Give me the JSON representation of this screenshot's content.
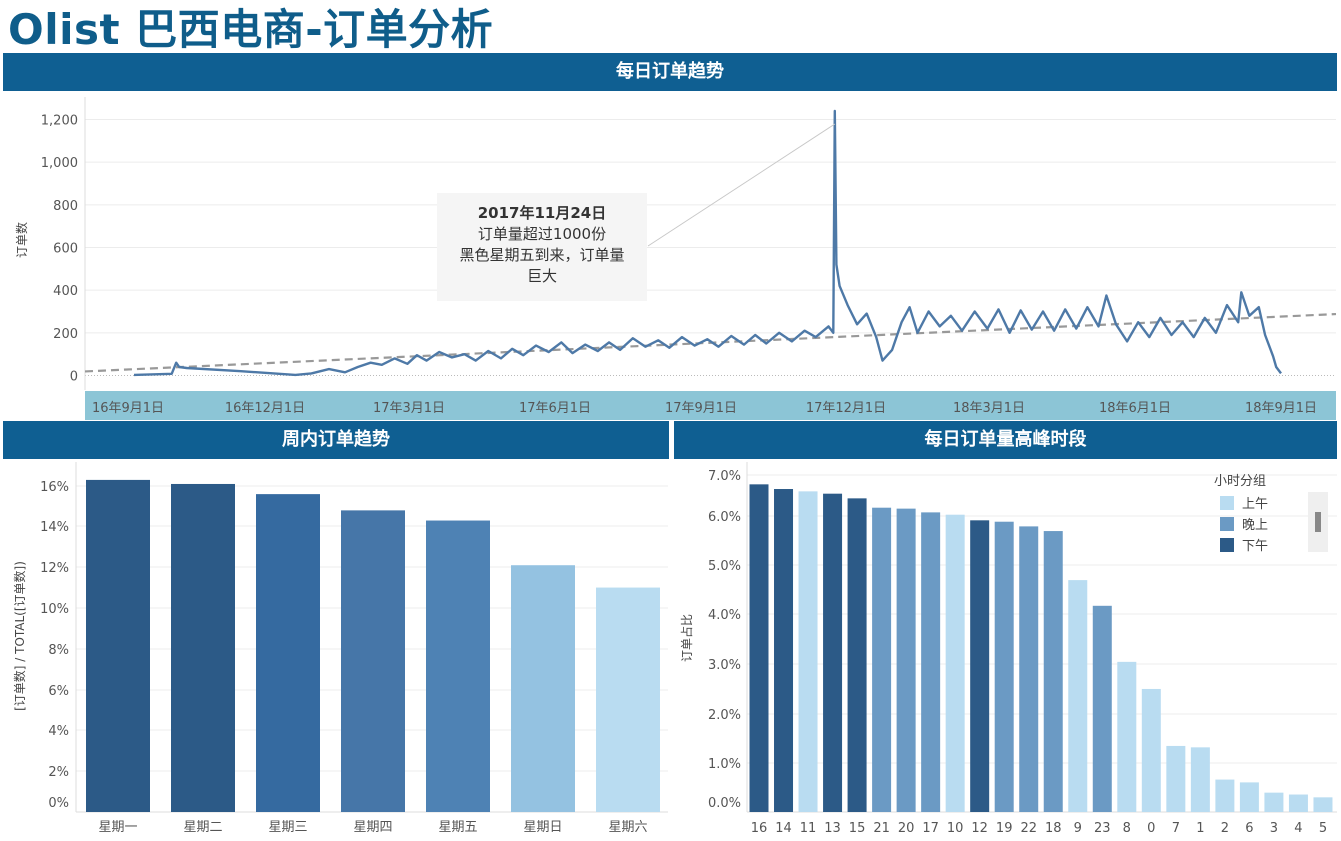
{
  "title": "Olist  巴西电商-订单分析",
  "banners": {
    "daily": "每日订单趋势",
    "weekday": "周内订单趋势",
    "hourly": "每日订单量高峰时段"
  },
  "annotation": {
    "heading": "2017年11月24日",
    "line1": "订单量超过1000份",
    "line2": "黑色星期五到来，订单量",
    "line3": "巨大"
  },
  "colors": {
    "line": "#4e79a7",
    "trend": "#999999",
    "axis_band": "#8cc5d6",
    "banner": "#0f5f92",
    "morning": "#b9dcf1",
    "evening": "#6b9ac4",
    "afternoon": "#2c5a87"
  },
  "legend": {
    "title": "小时分组",
    "items": [
      {
        "label": "上午",
        "color": "#b9dcf1"
      },
      {
        "label": "晚上",
        "color": "#6b9ac4"
      },
      {
        "label": "下午",
        "color": "#2c5a87"
      }
    ]
  },
  "chart_data": [
    {
      "type": "line",
      "title": "每日订单趋势",
      "ylabel": "订单数",
      "xlabel": "",
      "x_tick_labels": [
        "16年9月1日",
        "16年12月1日",
        "17年3月1日",
        "17年6月1日",
        "17年9月1日",
        "17年12月1日",
        "18年3月1日",
        "18年6月1日",
        "18年9月1日"
      ],
      "y_tick_labels": [
        "0",
        "200",
        "400",
        "600",
        "800",
        "1,000",
        "1,200"
      ],
      "ylim": [
        0,
        1250
      ],
      "trend_line": {
        "style": "dashed",
        "start": [
          "2016-09-01",
          25
        ],
        "end": [
          "2018-09-01",
          280
        ]
      },
      "series": [
        {
          "values": [
            [
              "2016-09-05",
              3
            ],
            [
              "2016-09-30",
              8
            ],
            [
              "2016-10-03",
              60
            ],
            [
              "2016-10-05",
              40
            ],
            [
              "2016-10-10",
              35
            ],
            [
              "2016-11-15",
              20
            ],
            [
              "2016-12-20",
              3
            ],
            [
              "2016-12-30",
              10
            ],
            [
              "2017-01-10",
              30
            ],
            [
              "2017-01-20",
              15
            ],
            [
              "2017-01-28",
              40
            ],
            [
              "2017-02-05",
              60
            ],
            [
              "2017-02-12",
              50
            ],
            [
              "2017-02-20",
              80
            ],
            [
              "2017-02-28",
              55
            ],
            [
              "2017-03-06",
              95
            ],
            [
              "2017-03-12",
              70
            ],
            [
              "2017-03-20",
              110
            ],
            [
              "2017-03-28",
              85
            ],
            [
              "2017-04-05",
              100
            ],
            [
              "2017-04-12",
              70
            ],
            [
              "2017-04-20",
              115
            ],
            [
              "2017-04-28",
              80
            ],
            [
              "2017-05-05",
              125
            ],
            [
              "2017-05-12",
              95
            ],
            [
              "2017-05-20",
              140
            ],
            [
              "2017-05-28",
              110
            ],
            [
              "2017-06-05",
              155
            ],
            [
              "2017-06-12",
              105
            ],
            [
              "2017-06-20",
              145
            ],
            [
              "2017-06-28",
              115
            ],
            [
              "2017-07-05",
              155
            ],
            [
              "2017-07-12",
              120
            ],
            [
              "2017-07-20",
              175
            ],
            [
              "2017-07-28",
              135
            ],
            [
              "2017-08-05",
              165
            ],
            [
              "2017-08-12",
              130
            ],
            [
              "2017-08-20",
              180
            ],
            [
              "2017-08-28",
              140
            ],
            [
              "2017-09-05",
              170
            ],
            [
              "2017-09-12",
              135
            ],
            [
              "2017-09-20",
              185
            ],
            [
              "2017-09-28",
              145
            ],
            [
              "2017-10-05",
              190
            ],
            [
              "2017-10-12",
              150
            ],
            [
              "2017-10-20",
              200
            ],
            [
              "2017-10-28",
              160
            ],
            [
              "2017-11-05",
              210
            ],
            [
              "2017-11-12",
              180
            ],
            [
              "2017-11-20",
              230
            ],
            [
              "2017-11-23",
              200
            ],
            [
              "2017-11-24",
              1240
            ],
            [
              "2017-11-25",
              520
            ],
            [
              "2017-11-27",
              420
            ],
            [
              "2017-12-02",
              330
            ],
            [
              "2017-12-08",
              240
            ],
            [
              "2017-12-14",
              290
            ],
            [
              "2017-12-20",
              180
            ],
            [
              "2017-12-24",
              70
            ],
            [
              "2017-12-30",
              120
            ],
            [
              "2018-01-05",
              250
            ],
            [
              "2018-01-10",
              320
            ],
            [
              "2018-01-15",
              200
            ],
            [
              "2018-01-22",
              300
            ],
            [
              "2018-01-29",
              230
            ],
            [
              "2018-02-05",
              280
            ],
            [
              "2018-02-12",
              210
            ],
            [
              "2018-02-20",
              300
            ],
            [
              "2018-02-28",
              220
            ],
            [
              "2018-03-07",
              310
            ],
            [
              "2018-03-14",
              200
            ],
            [
              "2018-03-21",
              305
            ],
            [
              "2018-03-28",
              215
            ],
            [
              "2018-04-04",
              300
            ],
            [
              "2018-04-11",
              210
            ],
            [
              "2018-04-18",
              310
            ],
            [
              "2018-04-25",
              220
            ],
            [
              "2018-05-02",
              320
            ],
            [
              "2018-05-09",
              230
            ],
            [
              "2018-05-14",
              375
            ],
            [
              "2018-05-20",
              240
            ],
            [
              "2018-05-27",
              160
            ],
            [
              "2018-06-03",
              250
            ],
            [
              "2018-06-10",
              180
            ],
            [
              "2018-06-17",
              270
            ],
            [
              "2018-06-24",
              190
            ],
            [
              "2018-07-01",
              250
            ],
            [
              "2018-07-08",
              180
            ],
            [
              "2018-07-15",
              270
            ],
            [
              "2018-07-22",
              200
            ],
            [
              "2018-07-29",
              330
            ],
            [
              "2018-08-05",
              250
            ],
            [
              "2018-08-07",
              390
            ],
            [
              "2018-08-12",
              280
            ],
            [
              "2018-08-18",
              320
            ],
            [
              "2018-08-22",
              190
            ],
            [
              "2018-08-27",
              90
            ],
            [
              "2018-08-29",
              40
            ],
            [
              "2018-09-01",
              10
            ]
          ]
        }
      ]
    },
    {
      "type": "bar",
      "title": "周内订单趋势",
      "ylabel": "[订单数] / TOTAL([订单数])",
      "categories": [
        "星期一",
        "星期二",
        "星期三",
        "星期四",
        "星期五",
        "星期日",
        "星期六"
      ],
      "values": [
        16.3,
        16.1,
        15.6,
        14.8,
        14.3,
        12.1,
        11.0
      ],
      "colors": [
        "#2c5a87",
        "#2c5a87",
        "#356aa0",
        "#4676a8",
        "#4e82b4",
        "#94c2e1",
        "#b9dcf1"
      ],
      "y_tick_labels": [
        "0%",
        "2%",
        "4%",
        "6%",
        "8%",
        "10%",
        "12%",
        "14%",
        "16%"
      ],
      "ylim": [
        0,
        16.5
      ]
    },
    {
      "type": "bar",
      "title": "每日订单量高峰时段",
      "ylabel": "订单占比",
      "categories": [
        "16",
        "14",
        "11",
        "13",
        "15",
        "21",
        "20",
        "17",
        "10",
        "12",
        "19",
        "22",
        "18",
        "9",
        "23",
        "8",
        "0",
        "7",
        "1",
        "2",
        "6",
        "3",
        "4",
        "5"
      ],
      "values": [
        6.8,
        6.7,
        6.65,
        6.6,
        6.5,
        6.3,
        6.28,
        6.2,
        6.15,
        6.03,
        6.0,
        5.9,
        5.8,
        4.75,
        4.2,
        3.0,
        2.42,
        1.2,
        1.17,
        0.48,
        0.42,
        0.2,
        0.16,
        0.1
      ],
      "groups": [
        "下午",
        "下午",
        "上午",
        "下午",
        "下午",
        "晚上",
        "晚上",
        "晚上",
        "上午",
        "下午",
        "晚上",
        "晚上",
        "晚上",
        "上午",
        "晚上",
        "上午",
        "上午",
        "上午",
        "上午",
        "上午",
        "上午",
        "上午",
        "上午",
        "上午"
      ],
      "y_tick_labels": [
        "0.0%",
        "1.0%",
        "2.0%",
        "3.0%",
        "4.0%",
        "5.0%",
        "6.0%",
        "7.0%"
      ],
      "ylim": [
        0,
        7.05
      ],
      "legend_position": "top-right"
    }
  ]
}
